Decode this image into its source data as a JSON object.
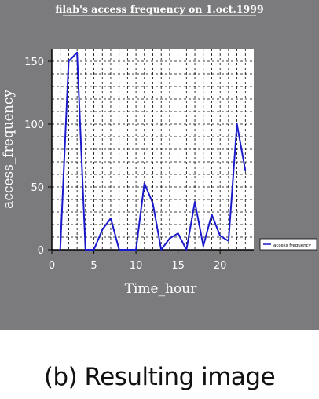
{
  "caption": "(b) Resulting image",
  "chart_data": {
    "type": "line",
    "title": "filab's access frequency on 1.oct.1999",
    "xlabel": "Time_hour",
    "ylabel": "access_frequency",
    "xlim": [
      0,
      24
    ],
    "ylim": [
      0,
      160
    ],
    "xticks": [
      0,
      5,
      10,
      15,
      20
    ],
    "yticks": [
      0,
      50,
      100,
      150
    ],
    "grid": true,
    "legend_position": "right",
    "series": [
      {
        "name": "access frequency",
        "color": "#1a1acc",
        "x": [
          1,
          2,
          3,
          4,
          5,
          6,
          7,
          8,
          9,
          10,
          11,
          12,
          13,
          14,
          15,
          16,
          17,
          18,
          19,
          20,
          21,
          22,
          23
        ],
        "y": [
          0,
          150,
          157,
          0,
          0,
          16,
          25,
          0,
          0,
          0,
          53,
          37,
          0,
          9,
          13,
          0,
          38,
          3,
          28,
          11,
          7,
          100,
          63
        ]
      }
    ]
  }
}
